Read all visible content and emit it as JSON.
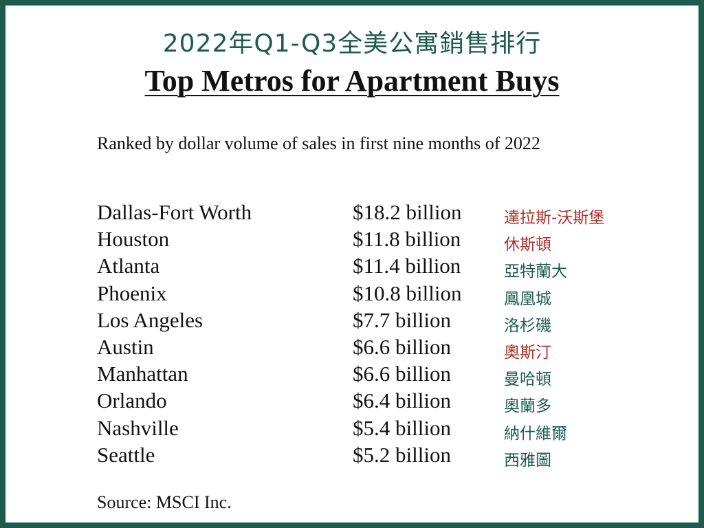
{
  "header": {
    "chinese_title": "2022年Q1-Q3全美公寓銷售排行",
    "english_title": "Top Metros for Apartment Buys",
    "subtitle": "Ranked by dollar volume of sales in first nine months of 2022"
  },
  "colors": {
    "frame": "#1e5b4f",
    "teal_text": "#1e5b4f",
    "red_text": "#a8322b"
  },
  "rankings": [
    {
      "metro": "Dallas-Fort Worth",
      "amount": "$18.2 billion",
      "chinese": "達拉斯-沃斯堡",
      "chinese_color": "#a8322b"
    },
    {
      "metro": "Houston",
      "amount": "$11.8 billion",
      "chinese": "休斯頓",
      "chinese_color": "#a8322b"
    },
    {
      "metro": "Atlanta",
      "amount": "$11.4 billion",
      "chinese": "亞特蘭大",
      "chinese_color": "#1e5b4f"
    },
    {
      "metro": "Phoenix",
      "amount": "$10.8 billion",
      "chinese": "鳳凰城",
      "chinese_color": "#1e5b4f"
    },
    {
      "metro": "Los Angeles",
      "amount": "$7.7 billion",
      "chinese": "洛杉磯",
      "chinese_color": "#1e5b4f"
    },
    {
      "metro": "Austin",
      "amount": "$6.6 billion",
      "chinese": "奧斯汀",
      "chinese_color": "#a8322b"
    },
    {
      "metro": "Manhattan",
      "amount": "$6.6 billion",
      "chinese": "曼哈頓",
      "chinese_color": "#1e5b4f"
    },
    {
      "metro": "Orlando",
      "amount": "$6.4 billion",
      "chinese": "奧蘭多",
      "chinese_color": "#1e5b4f"
    },
    {
      "metro": "Nashville",
      "amount": "$5.4 billion",
      "chinese": "納什維爾",
      "chinese_color": "#1e5b4f"
    },
    {
      "metro": "Seattle",
      "amount": "$5.2 billion",
      "chinese": "西雅圖",
      "chinese_color": "#1e5b4f"
    }
  ],
  "footer": {
    "source": "Source: MSCI Inc."
  }
}
